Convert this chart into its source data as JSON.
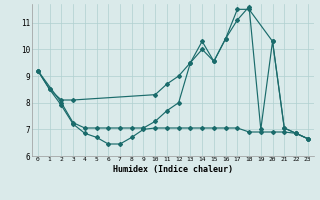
{
  "xlabel": "Humidex (Indice chaleur)",
  "background_color": "#daeaea",
  "grid_color": "#b0d0d0",
  "line_color": "#1a6b6b",
  "xlim": [
    -0.5,
    23.5
  ],
  "ylim": [
    6.0,
    11.7
  ],
  "yticks": [
    6,
    7,
    8,
    9,
    10,
    11
  ],
  "xticks": [
    0,
    1,
    2,
    3,
    4,
    5,
    6,
    7,
    8,
    9,
    10,
    11,
    12,
    13,
    14,
    15,
    16,
    17,
    18,
    19,
    20,
    21,
    22,
    23
  ],
  "line1_x": [
    0,
    1,
    2,
    3,
    4,
    5,
    6,
    7,
    8,
    9,
    10,
    11,
    12,
    13,
    14,
    15,
    16,
    17,
    18,
    19,
    20,
    21,
    22,
    23
  ],
  "line1_y": [
    9.2,
    8.5,
    7.9,
    7.2,
    6.85,
    6.7,
    6.45,
    6.45,
    6.7,
    7.0,
    7.05,
    7.05,
    7.05,
    7.05,
    7.05,
    7.05,
    7.05,
    7.05,
    6.9,
    6.9,
    6.9,
    6.9,
    6.85,
    6.65
  ],
  "line2_x": [
    0,
    1,
    2,
    3,
    10,
    11,
    12,
    13,
    14,
    15,
    16,
    17,
    18,
    20,
    21,
    22,
    23
  ],
  "line2_y": [
    9.2,
    8.5,
    8.1,
    8.1,
    8.3,
    8.7,
    9.0,
    9.5,
    10.0,
    9.55,
    10.4,
    11.5,
    11.5,
    10.3,
    7.05,
    6.85,
    6.65
  ],
  "line3_x": [
    0,
    2,
    3,
    4,
    5,
    6,
    7,
    8,
    9,
    10,
    11,
    12,
    13,
    14,
    15,
    16,
    17,
    18,
    19,
    20,
    21,
    22,
    23
  ],
  "line3_y": [
    9.2,
    8.0,
    7.25,
    7.05,
    7.05,
    7.05,
    7.05,
    7.05,
    7.05,
    7.3,
    7.7,
    8.0,
    9.5,
    10.3,
    9.55,
    10.4,
    11.1,
    11.6,
    7.0,
    10.3,
    7.05,
    6.85,
    6.65
  ]
}
